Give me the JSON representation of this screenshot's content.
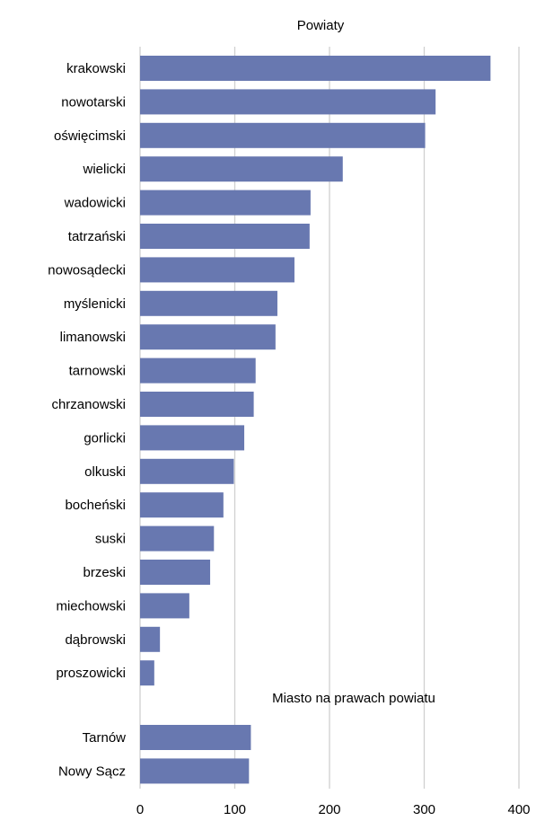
{
  "chart_data": {
    "type": "bar",
    "orientation": "horizontal",
    "xlim": [
      0,
      400
    ],
    "x_ticks": [
      0,
      100,
      200,
      300,
      400
    ],
    "grid": true,
    "bar_color": "#6878B0",
    "grid_color": "#D0D0D0",
    "groups": [
      {
        "title": "Powiaty",
        "categories": [
          "krakowski",
          "nowotarski",
          "oświęcimski",
          "wielicki",
          "wadowicki",
          "tatrzański",
          "nowosądecki",
          "myślenicki",
          "limanowski",
          "tarnowski",
          "chrzanowski",
          "gorlicki",
          "olkuski",
          "bocheński",
          "suski",
          "brzeski",
          "miechowski",
          "dąbrowski",
          "proszowicki"
        ],
        "values": [
          370,
          312,
          301,
          214,
          180,
          179,
          163,
          145,
          143,
          122,
          120,
          110,
          99,
          88,
          78,
          74,
          52,
          21,
          15
        ]
      },
      {
        "title": "Miasto na prawach powiatu",
        "categories": [
          "Tarnów",
          "Nowy Sącz"
        ],
        "values": [
          117,
          115
        ]
      }
    ]
  }
}
